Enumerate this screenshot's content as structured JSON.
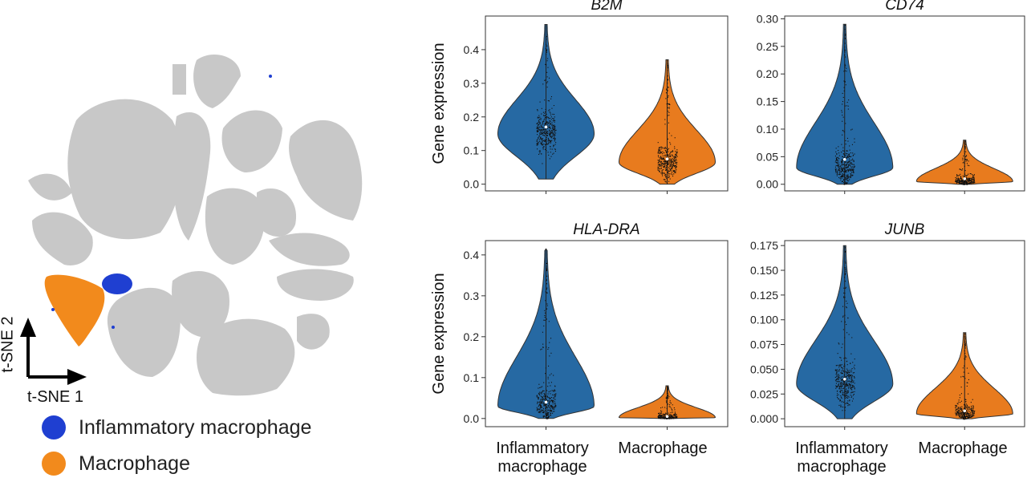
{
  "tsne": {
    "x_label": "t-SNE 1",
    "y_label": "t-SNE 2",
    "legend": [
      {
        "label": "Inflammatory macrophage",
        "color": "#1f3fd1"
      },
      {
        "label": "Macrophage",
        "color": "#f28a1c"
      }
    ],
    "background_color": "#c8c8c8"
  },
  "violin": {
    "ylabel": "Gene expression",
    "categories": [
      "Inflammatory macrophage",
      "Macrophage"
    ],
    "category_lines": [
      [
        "Inflammatory",
        "macrophage"
      ],
      [
        "Macrophage"
      ]
    ],
    "colors": {
      "Inflammatory macrophage": "#2669a3",
      "Macrophage": "#e87b1e"
    }
  },
  "chart_data": [
    {
      "type": "violin",
      "title": "B2M",
      "ylabel": "Gene expression",
      "categories": [
        "Inflammatory macrophage",
        "Macrophage"
      ],
      "yticks": [
        0.0,
        0.1,
        0.2,
        0.3,
        0.4
      ],
      "ylim": [
        -0.02,
        0.5
      ],
      "series": [
        {
          "name": "Inflammatory macrophage",
          "min": 0.015,
          "max": 0.475,
          "mode": 0.15,
          "median": 0.17
        },
        {
          "name": "Macrophage",
          "min": 0.0,
          "max": 0.37,
          "mode": 0.065,
          "median": 0.075
        }
      ]
    },
    {
      "type": "violin",
      "title": "CD74",
      "ylabel": "",
      "categories": [
        "Inflammatory macrophage",
        "Macrophage"
      ],
      "yticks": [
        0.0,
        0.05,
        0.1,
        0.15,
        0.2,
        0.25,
        0.3
      ],
      "ylim": [
        -0.012,
        0.305
      ],
      "series": [
        {
          "name": "Inflammatory macrophage",
          "min": 0.0,
          "max": 0.29,
          "mode": 0.03,
          "median": 0.045
        },
        {
          "name": "Macrophage",
          "min": 0.0,
          "max": 0.08,
          "mode": 0.005,
          "median": 0.01
        }
      ]
    },
    {
      "type": "violin",
      "title": "HLA-DRA",
      "ylabel": "Gene expression",
      "categories": [
        "Inflammatory macrophage",
        "Macrophage"
      ],
      "yticks": [
        0.0,
        0.1,
        0.2,
        0.3,
        0.4
      ],
      "ylim": [
        -0.02,
        0.435
      ],
      "series": [
        {
          "name": "Inflammatory macrophage",
          "min": 0.0,
          "max": 0.415,
          "mode": 0.03,
          "median": 0.04
        },
        {
          "name": "Macrophage",
          "min": 0.0,
          "max": 0.08,
          "mode": 0.002,
          "median": 0.005
        }
      ]
    },
    {
      "type": "violin",
      "title": "JUNB",
      "ylabel": "",
      "categories": [
        "Inflammatory macrophage",
        "Macrophage"
      ],
      "yticks": [
        0.0,
        0.025,
        0.05,
        0.075,
        0.1,
        0.125,
        0.15,
        0.175
      ],
      "ylim": [
        -0.008,
        0.18
      ],
      "series": [
        {
          "name": "Inflammatory macrophage",
          "min": 0.0,
          "max": 0.175,
          "mode": 0.035,
          "median": 0.04
        },
        {
          "name": "Macrophage",
          "min": 0.0,
          "max": 0.087,
          "mode": 0.005,
          "median": 0.008
        }
      ]
    }
  ]
}
